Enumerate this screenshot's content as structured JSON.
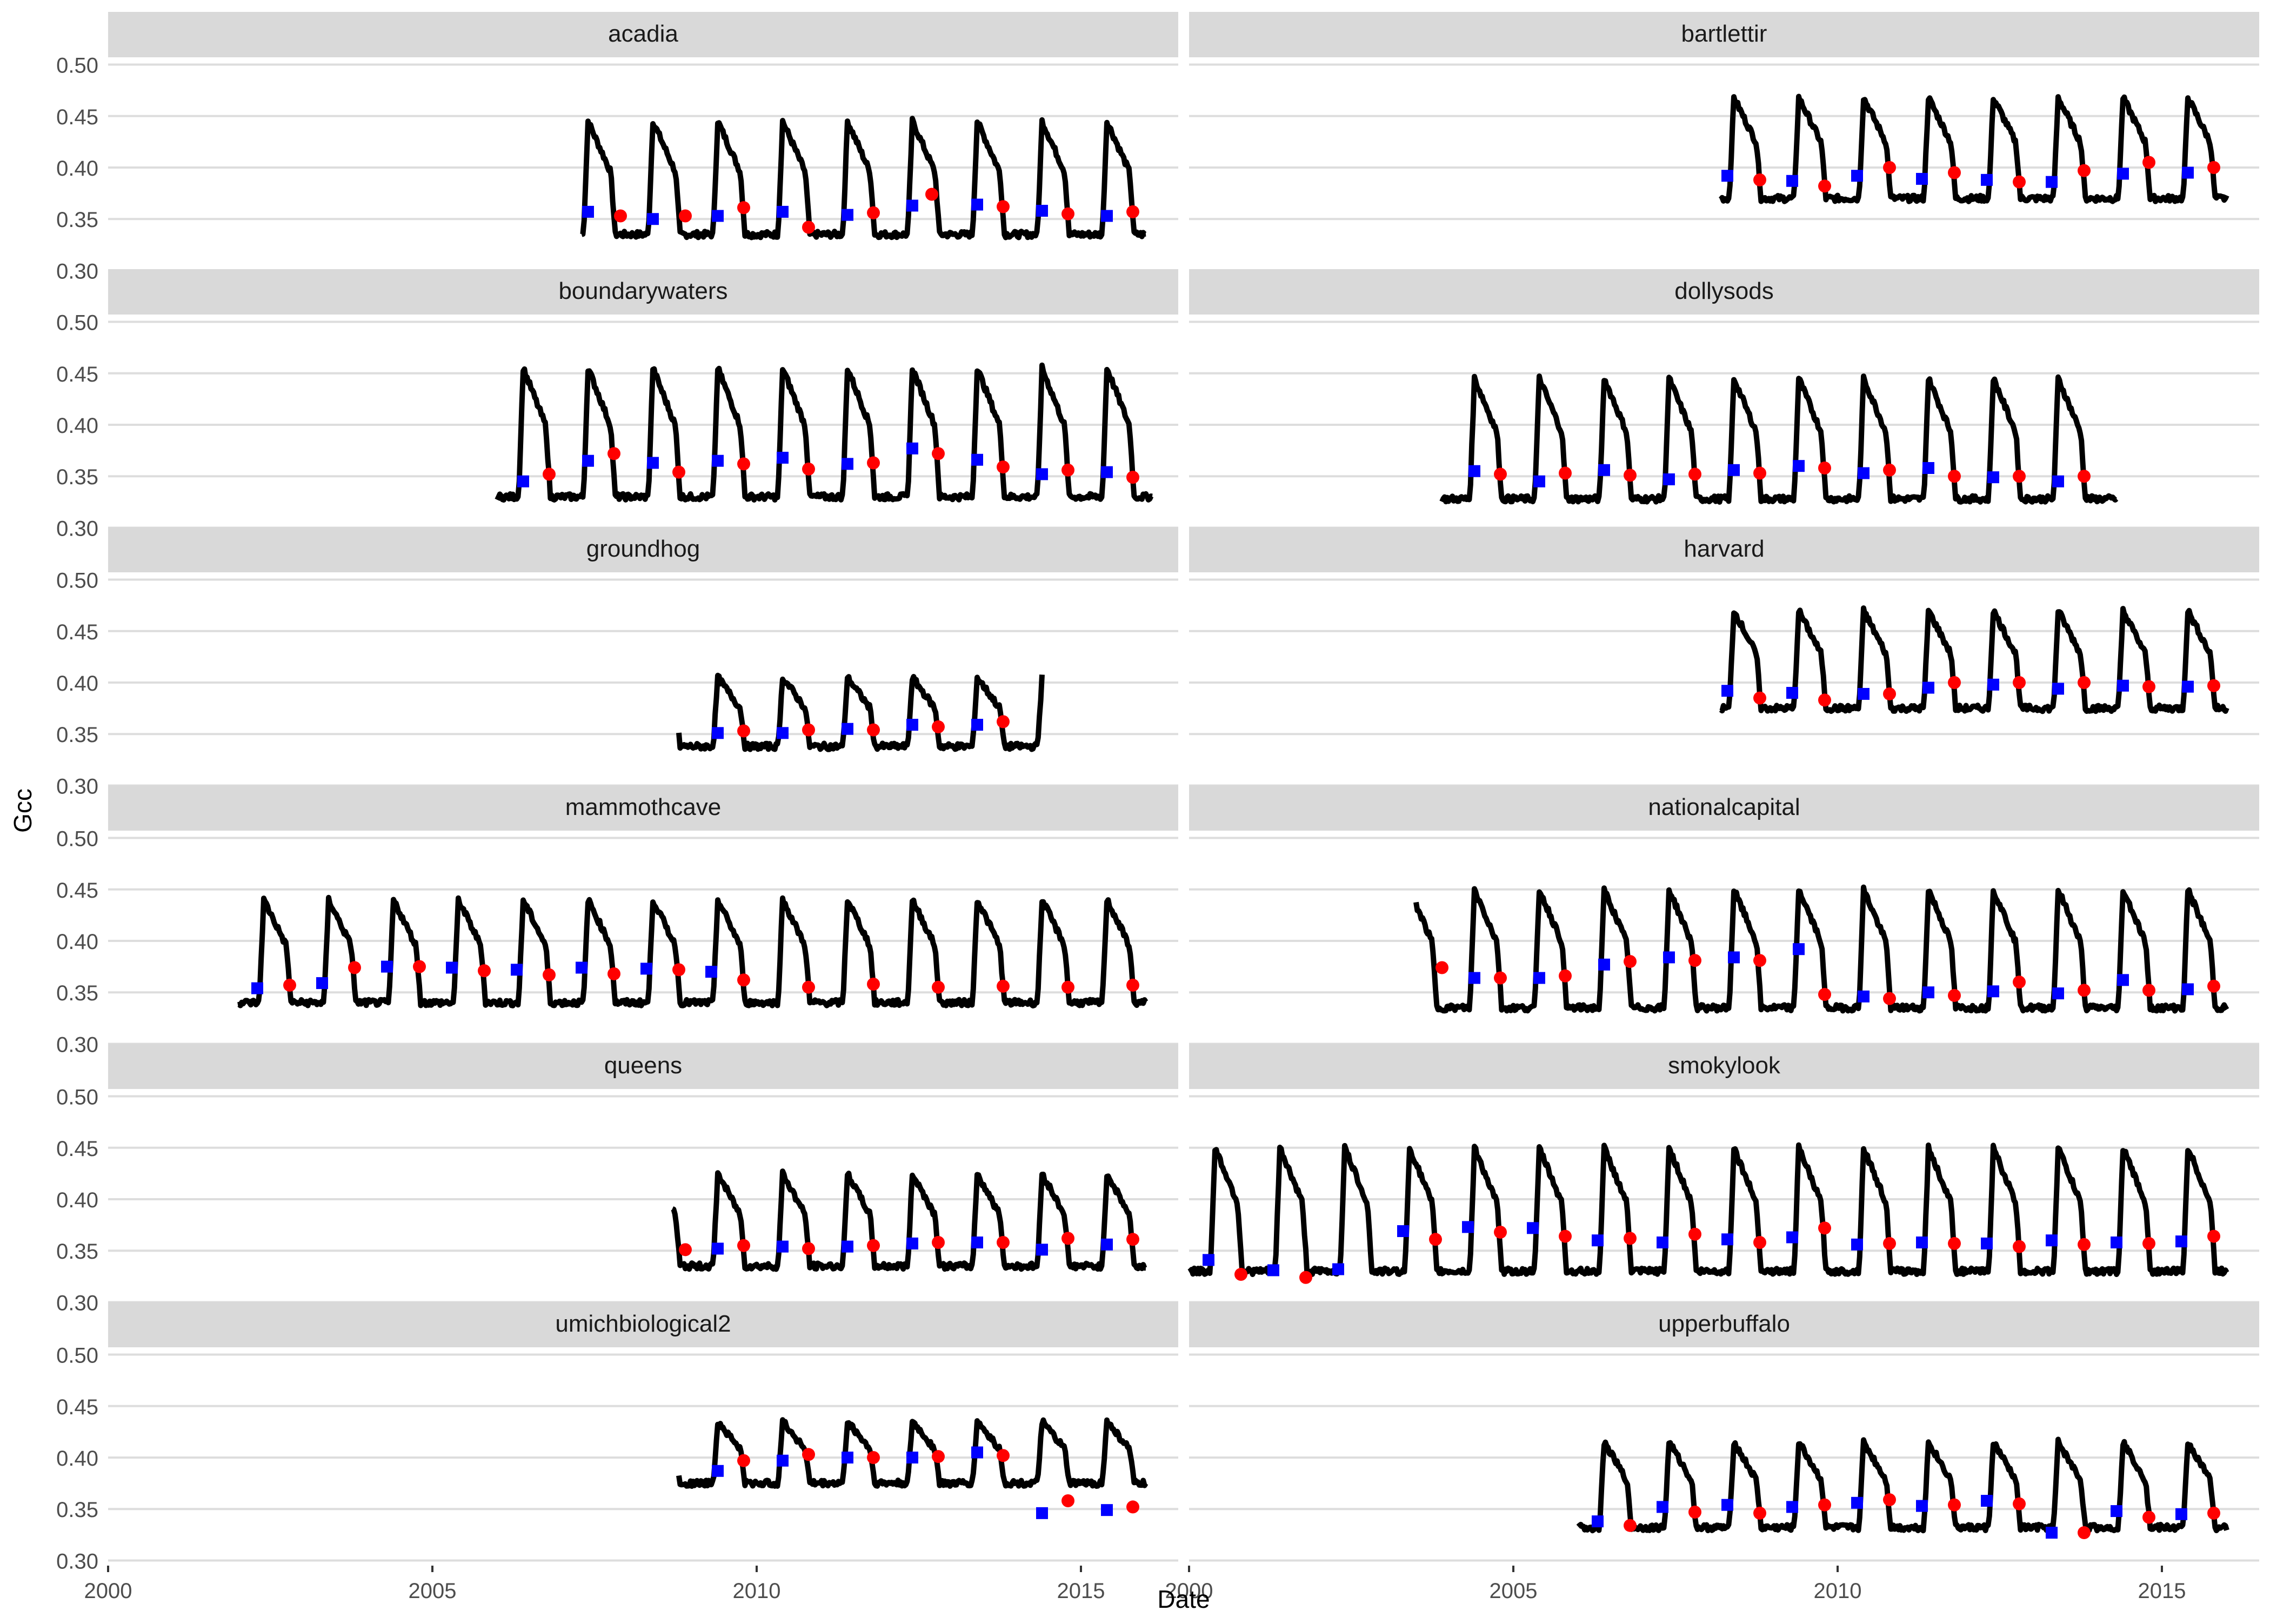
{
  "chart_data": {
    "type": "line",
    "layout": "facet grid, 6 rows x 2 columns, shared axes",
    "xlabel": "Date",
    "ylabel": "Gcc",
    "x_ticks": [
      "2000",
      "2005",
      "2010",
      "2015"
    ],
    "xlim": [
      2000,
      2016.5
    ],
    "y_ticks": [
      "0.30",
      "0.35",
      "0.40",
      "0.45",
      "0.50"
    ],
    "ylim": [
      0.295,
      0.505
    ],
    "grid": true,
    "line_color": "#000000",
    "spring_marker_color": "#0000ff",
    "autumn_marker_color": "#ff0000",
    "strip_color": "#d9d9d9",
    "panels": [
      {
        "name": "acadia",
        "start": 2007.3,
        "end": 2016.0,
        "base": 0.335,
        "peak": 0.445,
        "cycle_start": 2007.4,
        "spring": [
          [
            2007.4,
            0.357
          ],
          [
            2008.4,
            0.35
          ],
          [
            2009.4,
            0.353
          ],
          [
            2010.4,
            0.357
          ],
          [
            2011.4,
            0.354
          ],
          [
            2012.4,
            0.363
          ],
          [
            2013.4,
            0.364
          ],
          [
            2014.4,
            0.358
          ],
          [
            2015.4,
            0.353
          ]
        ],
        "autumn": [
          [
            2007.9,
            0.353
          ],
          [
            2008.9,
            0.353
          ],
          [
            2009.8,
            0.361
          ],
          [
            2010.8,
            0.342
          ],
          [
            2011.8,
            0.356
          ],
          [
            2012.7,
            0.374
          ],
          [
            2013.8,
            0.362
          ],
          [
            2014.8,
            0.355
          ],
          [
            2015.8,
            0.357
          ]
        ]
      },
      {
        "name": "bartlettir",
        "start": 2008.2,
        "end": 2016.0,
        "base": 0.37,
        "peak": 0.468,
        "cycle_start": 2008.3,
        "spring": [
          [
            2008.3,
            0.392
          ],
          [
            2009.3,
            0.387
          ],
          [
            2010.3,
            0.392
          ],
          [
            2011.3,
            0.389
          ],
          [
            2012.3,
            0.388
          ],
          [
            2013.3,
            0.386
          ],
          [
            2014.4,
            0.394
          ],
          [
            2015.4,
            0.395
          ]
        ],
        "autumn": [
          [
            2008.8,
            0.388
          ],
          [
            2009.8,
            0.382
          ],
          [
            2010.8,
            0.4
          ],
          [
            2011.8,
            0.395
          ],
          [
            2012.8,
            0.386
          ],
          [
            2013.8,
            0.397
          ],
          [
            2014.8,
            0.405
          ],
          [
            2015.8,
            0.4
          ]
        ]
      },
      {
        "name": "boundarywaters",
        "start": 2006.0,
        "end": 2016.1,
        "base": 0.33,
        "peak": 0.455,
        "cycle_start": 2006.4,
        "spring": [
          [
            2006.4,
            0.345
          ],
          [
            2007.4,
            0.365
          ],
          [
            2008.4,
            0.363
          ],
          [
            2009.4,
            0.365
          ],
          [
            2010.4,
            0.368
          ],
          [
            2011.4,
            0.362
          ],
          [
            2012.4,
            0.377
          ],
          [
            2013.4,
            0.366
          ],
          [
            2014.4,
            0.352
          ],
          [
            2015.4,
            0.354
          ]
        ],
        "autumn": [
          [
            2006.8,
            0.352
          ],
          [
            2007.8,
            0.372
          ],
          [
            2008.8,
            0.354
          ],
          [
            2009.8,
            0.362
          ],
          [
            2010.8,
            0.357
          ],
          [
            2011.8,
            0.363
          ],
          [
            2012.8,
            0.372
          ],
          [
            2013.8,
            0.359
          ],
          [
            2014.8,
            0.356
          ],
          [
            2015.8,
            0.349
          ]
        ]
      },
      {
        "name": "dollysods",
        "start": 2003.9,
        "end": 2014.3,
        "base": 0.328,
        "peak": 0.445,
        "cycle_start": 2004.4,
        "spring": [
          [
            2004.4,
            0.355
          ],
          [
            2005.4,
            0.345
          ],
          [
            2006.4,
            0.356
          ],
          [
            2007.4,
            0.347
          ],
          [
            2008.4,
            0.356
          ],
          [
            2009.4,
            0.36
          ],
          [
            2010.4,
            0.353
          ],
          [
            2011.4,
            0.358
          ],
          [
            2012.4,
            0.349
          ],
          [
            2013.4,
            0.345
          ]
        ],
        "autumn": [
          [
            2004.8,
            0.352
          ],
          [
            2005.8,
            0.353
          ],
          [
            2006.8,
            0.351
          ],
          [
            2007.8,
            0.352
          ],
          [
            2008.8,
            0.353
          ],
          [
            2009.8,
            0.358
          ],
          [
            2010.8,
            0.356
          ],
          [
            2011.8,
            0.35
          ],
          [
            2012.8,
            0.35
          ],
          [
            2013.8,
            0.35
          ]
        ]
      },
      {
        "name": "groundhog",
        "start": 2008.8,
        "end": 2014.4,
        "base": 0.338,
        "peak": 0.405,
        "cycle_start": 2009.4,
        "spring": [
          [
            2009.4,
            0.351
          ],
          [
            2010.4,
            0.351
          ],
          [
            2011.4,
            0.355
          ],
          [
            2012.4,
            0.359
          ],
          [
            2013.4,
            0.359
          ]
        ],
        "autumn": [
          [
            2009.8,
            0.353
          ],
          [
            2010.8,
            0.354
          ],
          [
            2011.8,
            0.354
          ],
          [
            2012.8,
            0.357
          ],
          [
            2013.8,
            0.362
          ]
        ]
      },
      {
        "name": "harvard",
        "start": 2008.2,
        "end": 2016.0,
        "base": 0.375,
        "peak": 0.47,
        "cycle_start": 2008.3,
        "spring": [
          [
            2008.3,
            0.392
          ],
          [
            2009.3,
            0.39
          ],
          [
            2010.4,
            0.389
          ],
          [
            2011.4,
            0.395
          ],
          [
            2012.4,
            0.398
          ],
          [
            2013.4,
            0.394
          ],
          [
            2014.4,
            0.397
          ],
          [
            2015.4,
            0.396
          ]
        ],
        "autumn": [
          [
            2008.8,
            0.385
          ],
          [
            2009.8,
            0.383
          ],
          [
            2010.8,
            0.389
          ],
          [
            2011.8,
            0.4
          ],
          [
            2012.8,
            0.4
          ],
          [
            2013.8,
            0.4
          ],
          [
            2014.8,
            0.396
          ],
          [
            2015.8,
            0.397
          ]
        ]
      },
      {
        "name": "mammothcave",
        "start": 2002.0,
        "end": 2016.0,
        "base": 0.34,
        "peak": 0.44,
        "cycle_start": 2002.3,
        "spring": [
          [
            2002.3,
            0.354
          ],
          [
            2003.3,
            0.359
          ],
          [
            2004.3,
            0.375
          ],
          [
            2005.3,
            0.374
          ],
          [
            2006.3,
            0.372
          ],
          [
            2007.3,
            0.374
          ],
          [
            2008.3,
            0.373
          ],
          [
            2009.3,
            0.37
          ]
        ],
        "autumn": [
          [
            2002.8,
            0.357
          ],
          [
            2003.8,
            0.374
          ],
          [
            2004.8,
            0.375
          ],
          [
            2005.8,
            0.371
          ],
          [
            2006.8,
            0.367
          ],
          [
            2007.8,
            0.368
          ],
          [
            2008.8,
            0.372
          ],
          [
            2009.8,
            0.362
          ],
          [
            2010.8,
            0.355
          ],
          [
            2011.8,
            0.358
          ],
          [
            2012.8,
            0.355
          ],
          [
            2013.8,
            0.356
          ],
          [
            2014.8,
            0.355
          ],
          [
            2015.8,
            0.357
          ]
        ],
        "spring_late": [
          [
            2010.8,
            0.355
          ],
          [
            2011.8,
            0.358
          ],
          [
            2012.8,
            0.355
          ],
          [
            2013.8,
            0.356
          ],
          [
            2014.8,
            0.355
          ],
          [
            2015.8,
            0.357
          ]
        ]
      },
      {
        "name": "nationalcapital",
        "start": 2003.5,
        "end": 2016.0,
        "base": 0.335,
        "peak": 0.45,
        "cycle_start": 2003.9,
        "spring": [
          [
            2004.4,
            0.364
          ],
          [
            2005.4,
            0.364
          ],
          [
            2006.4,
            0.377
          ],
          [
            2007.4,
            0.384
          ],
          [
            2008.4,
            0.384
          ],
          [
            2009.4,
            0.392
          ],
          [
            2010.4,
            0.346
          ],
          [
            2011.4,
            0.35
          ],
          [
            2012.4,
            0.351
          ],
          [
            2013.4,
            0.349
          ],
          [
            2014.4,
            0.362
          ],
          [
            2015.4,
            0.353
          ]
        ],
        "autumn": [
          [
            2003.9,
            0.374
          ],
          [
            2004.8,
            0.364
          ],
          [
            2005.8,
            0.366
          ],
          [
            2006.8,
            0.38
          ],
          [
            2007.8,
            0.381
          ],
          [
            2008.8,
            0.381
          ],
          [
            2009.8,
            0.348
          ],
          [
            2010.8,
            0.344
          ],
          [
            2011.8,
            0.347
          ],
          [
            2012.8,
            0.36
          ],
          [
            2013.8,
            0.352
          ],
          [
            2014.8,
            0.352
          ],
          [
            2015.8,
            0.356
          ]
        ]
      },
      {
        "name": "queens",
        "start": 2008.7,
        "end": 2016.0,
        "base": 0.335,
        "peak": 0.425,
        "cycle_start": 2009.4,
        "spring": [
          [
            2009.4,
            0.352
          ],
          [
            2010.4,
            0.354
          ],
          [
            2011.4,
            0.354
          ],
          [
            2012.4,
            0.357
          ],
          [
            2013.4,
            0.358
          ],
          [
            2014.4,
            0.351
          ],
          [
            2015.4,
            0.356
          ]
        ],
        "autumn": [
          [
            2008.9,
            0.351
          ],
          [
            2009.8,
            0.355
          ],
          [
            2010.8,
            0.352
          ],
          [
            2011.8,
            0.355
          ],
          [
            2012.8,
            0.358
          ],
          [
            2013.8,
            0.358
          ],
          [
            2014.8,
            0.362
          ],
          [
            2015.8,
            0.361
          ]
        ]
      },
      {
        "name": "smokylook",
        "start": 2000.0,
        "end": 2016.0,
        "base": 0.33,
        "peak": 0.45,
        "cycle_start": 2000.3,
        "spring": [
          [
            2000.3,
            0.341
          ],
          [
            2001.3,
            0.331
          ],
          [
            2002.3,
            0.332
          ],
          [
            2003.3,
            0.369
          ],
          [
            2004.3,
            0.373
          ],
          [
            2005.3,
            0.372
          ],
          [
            2006.3,
            0.36
          ],
          [
            2007.3,
            0.358
          ],
          [
            2008.3,
            0.361
          ],
          [
            2009.3,
            0.363
          ],
          [
            2010.3,
            0.356
          ],
          [
            2011.3,
            0.358
          ],
          [
            2012.3,
            0.357
          ],
          [
            2013.3,
            0.36
          ],
          [
            2014.3,
            0.358
          ],
          [
            2015.3,
            0.359
          ]
        ],
        "autumn": [
          [
            2000.8,
            0.327
          ],
          [
            2001.8,
            0.324
          ],
          [
            2003.8,
            0.361
          ],
          [
            2004.8,
            0.368
          ],
          [
            2005.8,
            0.364
          ],
          [
            2006.8,
            0.362
          ],
          [
            2007.8,
            0.366
          ],
          [
            2008.8,
            0.358
          ],
          [
            2009.8,
            0.372
          ],
          [
            2010.8,
            0.357
          ],
          [
            2011.8,
            0.357
          ],
          [
            2012.8,
            0.354
          ],
          [
            2013.8,
            0.356
          ],
          [
            2014.8,
            0.357
          ],
          [
            2015.8,
            0.364
          ]
        ]
      },
      {
        "name": "umichbiological2",
        "start": 2008.8,
        "end": 2016.0,
        "base": 0.375,
        "peak": 0.435,
        "cycle_start": 2009.4,
        "spring": [
          [
            2009.4,
            0.387
          ],
          [
            2010.4,
            0.397
          ],
          [
            2011.4,
            0.4
          ],
          [
            2012.4,
            0.4
          ],
          [
            2013.4,
            0.405
          ],
          [
            2014.4,
            0.346
          ],
          [
            2015.4,
            0.349
          ]
        ],
        "autumn": [
          [
            2009.8,
            0.397
          ],
          [
            2010.8,
            0.403
          ],
          [
            2011.8,
            0.4
          ],
          [
            2012.8,
            0.401
          ],
          [
            2013.8,
            0.402
          ],
          [
            2014.8,
            0.358
          ],
          [
            2015.8,
            0.352
          ]
        ]
      },
      {
        "name": "upperbuffalo",
        "start": 2006.0,
        "end": 2016.0,
        "base": 0.332,
        "peak": 0.415,
        "cycle_start": 2006.3,
        "spring": [
          [
            2006.3,
            0.338
          ],
          [
            2007.3,
            0.352
          ],
          [
            2008.3,
            0.354
          ],
          [
            2009.3,
            0.352
          ],
          [
            2010.3,
            0.356
          ],
          [
            2011.3,
            0.353
          ],
          [
            2012.3,
            0.358
          ],
          [
            2013.3,
            0.327
          ],
          [
            2014.3,
            0.348
          ],
          [
            2015.3,
            0.345
          ]
        ],
        "autumn": [
          [
            2006.8,
            0.334
          ],
          [
            2007.8,
            0.347
          ],
          [
            2008.8,
            0.346
          ],
          [
            2009.8,
            0.354
          ],
          [
            2010.8,
            0.359
          ],
          [
            2011.8,
            0.354
          ],
          [
            2012.8,
            0.355
          ],
          [
            2013.8,
            0.327
          ],
          [
            2014.8,
            0.342
          ],
          [
            2015.8,
            0.346
          ]
        ]
      }
    ]
  }
}
